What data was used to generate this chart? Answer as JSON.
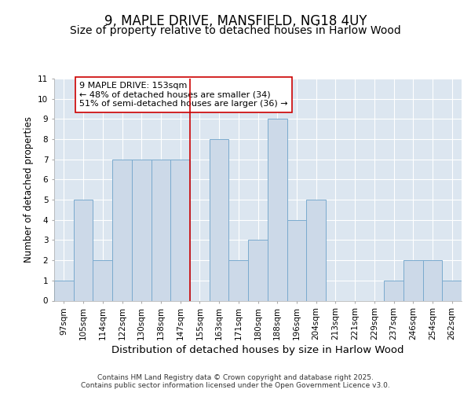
{
  "title": "9, MAPLE DRIVE, MANSFIELD, NG18 4UY",
  "subtitle": "Size of property relative to detached houses in Harlow Wood",
  "xlabel": "Distribution of detached houses by size in Harlow Wood",
  "ylabel": "Number of detached properties",
  "categories": [
    "97sqm",
    "105sqm",
    "114sqm",
    "122sqm",
    "130sqm",
    "138sqm",
    "147sqm",
    "155sqm",
    "163sqm",
    "171sqm",
    "180sqm",
    "188sqm",
    "196sqm",
    "204sqm",
    "213sqm",
    "221sqm",
    "229sqm",
    "237sqm",
    "246sqm",
    "254sqm",
    "262sqm"
  ],
  "values": [
    1,
    5,
    2,
    7,
    7,
    7,
    7,
    0,
    8,
    2,
    3,
    9,
    4,
    5,
    0,
    0,
    0,
    1,
    2,
    2,
    1
  ],
  "bar_color": "#ccd9e8",
  "bar_edge_color": "#7aaace",
  "subject_line_index": 7,
  "subject_line_color": "#cc0000",
  "annotation_text": "9 MAPLE DRIVE: 153sqm\n← 48% of detached houses are smaller (34)\n51% of semi-detached houses are larger (36) →",
  "annotation_box_facecolor": "#ffffff",
  "annotation_box_edgecolor": "#cc0000",
  "ylim": [
    0,
    11
  ],
  "yticks": [
    0,
    1,
    2,
    3,
    4,
    5,
    6,
    7,
    8,
    9,
    10,
    11
  ],
  "plot_bg_color": "#dce6f0",
  "grid_color": "#ffffff",
  "fig_bg_color": "#ffffff",
  "footer": "Contains HM Land Registry data © Crown copyright and database right 2025.\nContains public sector information licensed under the Open Government Licence v3.0.",
  "title_fontsize": 12,
  "subtitle_fontsize": 10,
  "xlabel_fontsize": 9.5,
  "ylabel_fontsize": 8.5,
  "tick_fontsize": 7.5,
  "annotation_fontsize": 8,
  "footer_fontsize": 6.5
}
